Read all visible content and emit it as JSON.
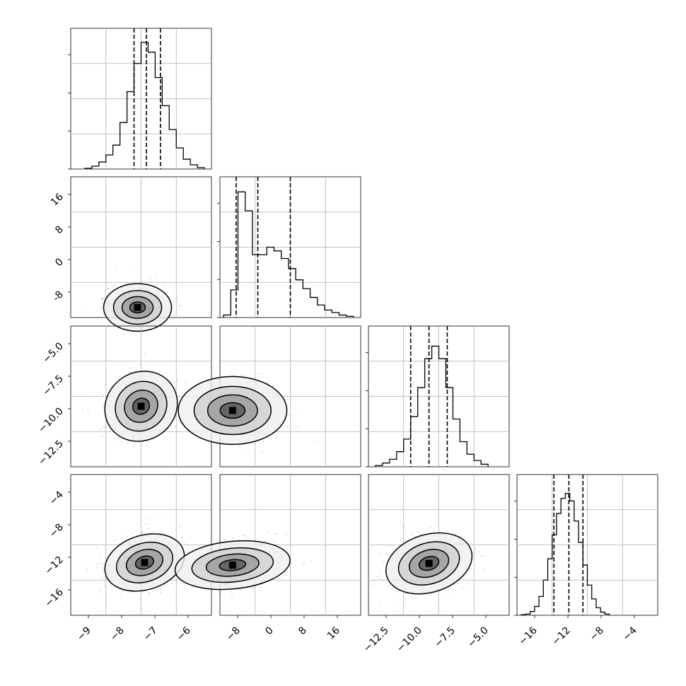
{
  "figure": {
    "description_type": "corner-plot"
  },
  "chart_data": [
    {
      "type": "bar",
      "panel": "hist-param-1",
      "bin_edges": [
        -9.0,
        -8.8,
        -8.6,
        -8.4,
        -8.2,
        -8.0,
        -7.8,
        -7.6,
        -7.4,
        -7.2,
        -7.0,
        -6.8,
        -6.6,
        -6.4,
        -6.2,
        -6.0,
        -5.8,
        -5.6
      ],
      "values": [
        0.005,
        0.02,
        0.05,
        0.1,
        0.17,
        0.33,
        0.55,
        0.75,
        0.9,
        0.83,
        0.65,
        0.45,
        0.28,
        0.15,
        0.07,
        0.03,
        0.01
      ],
      "quantiles": [
        -7.6,
        -7.25,
        -6.85
      ],
      "xlim": [
        -9.4,
        -5.4
      ],
      "ylim": [
        0,
        1
      ],
      "grid": true
    },
    {
      "type": "bar",
      "panel": "hist-param-2",
      "bin_edges": [
        -12,
        -10,
        -8,
        -6,
        -4,
        -2,
        0,
        2,
        4,
        6,
        8,
        10,
        12,
        14,
        16,
        18,
        20,
        22,
        24
      ],
      "values": [
        0.02,
        0.22,
        1.0,
        0.85,
        0.5,
        0.5,
        0.56,
        0.53,
        0.47,
        0.39,
        0.3,
        0.23,
        0.16,
        0.1,
        0.06,
        0.04,
        0.02,
        0.01
      ],
      "quantiles": [
        -8.5,
        -2.5,
        6.5
      ],
      "xlim": [
        -13,
        26
      ],
      "ylim": [
        0,
        1.12
      ],
      "grid": true
    },
    {
      "type": "bar",
      "panel": "hist-param-3",
      "bin_edges": [
        -14.0,
        -13.5,
        -13.0,
        -12.5,
        -12.0,
        -11.5,
        -11.0,
        -10.5,
        -10.0,
        -9.5,
        -9.0,
        -8.5,
        -8.0,
        -7.5,
        -7.0,
        -6.5,
        -6.0
      ],
      "values": [
        0.01,
        0.03,
        0.06,
        0.12,
        0.22,
        0.4,
        0.63,
        0.86,
        0.96,
        0.86,
        0.63,
        0.38,
        0.2,
        0.1,
        0.05,
        0.02
      ],
      "quantiles": [
        -11.5,
        -10.2,
        -8.9
      ],
      "xlim": [
        -14.5,
        -4.5
      ],
      "ylim": [
        0,
        1.12
      ],
      "grid": true
    },
    {
      "type": "bar",
      "panel": "hist-param-4",
      "bin_edges": [
        -17,
        -16.5,
        -16,
        -15.5,
        -15,
        -14.5,
        -14,
        -13.5,
        -13,
        -12.5,
        -12,
        -11.5,
        -11,
        -10.5,
        -10,
        -9.5,
        -9,
        -8.5,
        -8,
        -7.5,
        -7
      ],
      "values": [
        0.005,
        0.01,
        0.03,
        0.07,
        0.15,
        0.28,
        0.45,
        0.64,
        0.81,
        0.93,
        0.97,
        0.91,
        0.75,
        0.58,
        0.4,
        0.24,
        0.13,
        0.06,
        0.025,
        0.01
      ],
      "quantiles": [
        -13.3,
        -11.6,
        -10.0
      ],
      "xlim": [
        -17.5,
        -1.5
      ],
      "ylim": [
        0,
        1.12
      ],
      "grid": true
    },
    {
      "type": "scatter",
      "panel": "joint-param-1-param-2",
      "xlim": [
        -9.4,
        -5.4
      ],
      "ylim": [
        -13,
        26
      ],
      "yticks": [
        16,
        8,
        0,
        -8
      ],
      "mode": [
        -7.5,
        -10.2
      ],
      "contours": "filled density with 4 contour levels"
    },
    {
      "type": "scatter",
      "panel": "joint-param-1-param-3",
      "xlim": [
        -9.4,
        -5.4
      ],
      "ylim": [
        -14.5,
        -4.5
      ],
      "yticks": [
        "−5.0",
        "−7.5",
        "−10.0",
        "−12.5"
      ],
      "mode": [
        -7.4,
        -10.2
      ],
      "contours": "filled density with 4 contour levels"
    },
    {
      "type": "scatter",
      "panel": "joint-param-2-param-3",
      "xlim": [
        -13,
        26
      ],
      "ylim": [
        -14.5,
        -4.5
      ],
      "mode": [
        -9.5,
        -10.5
      ],
      "contours": "filled density with 4 contour levels"
    },
    {
      "type": "scatter",
      "panel": "joint-param-1-param-4",
      "xlim": [
        -9.4,
        -5.4
      ],
      "ylim": [
        -17.5,
        -1.5
      ],
      "yticks": [
        "−4",
        "−8",
        "−12",
        "−16"
      ],
      "xticks": [
        "−9",
        "−8",
        "−7",
        "−6"
      ],
      "mode": [
        -7.3,
        -11.5
      ],
      "contours": "filled density with 4 contour levels"
    },
    {
      "type": "scatter",
      "panel": "joint-param-2-param-4",
      "xlim": [
        -13,
        26
      ],
      "ylim": [
        -17.5,
        -1.5
      ],
      "xticks": [
        "−8",
        "0",
        "8",
        "16"
      ],
      "mode": [
        -9.5,
        -11.8
      ],
      "contours": "filled density with 4 contour levels"
    },
    {
      "type": "scatter",
      "panel": "joint-param-3-param-4",
      "xlim": [
        -14.5,
        -4.5
      ],
      "ylim": [
        -17.5,
        -1.5
      ],
      "xticks": [
        "−12.5",
        "−10.0",
        "−7.5",
        "−5.0"
      ],
      "mode": [
        -10.2,
        -11.6
      ],
      "contours": "filled density with 4 contour levels"
    },
    {
      "type": "bar",
      "panel": "x-ticks-param-4",
      "xticks": [
        "−16",
        "−12",
        "−8",
        "−4"
      ]
    }
  ]
}
